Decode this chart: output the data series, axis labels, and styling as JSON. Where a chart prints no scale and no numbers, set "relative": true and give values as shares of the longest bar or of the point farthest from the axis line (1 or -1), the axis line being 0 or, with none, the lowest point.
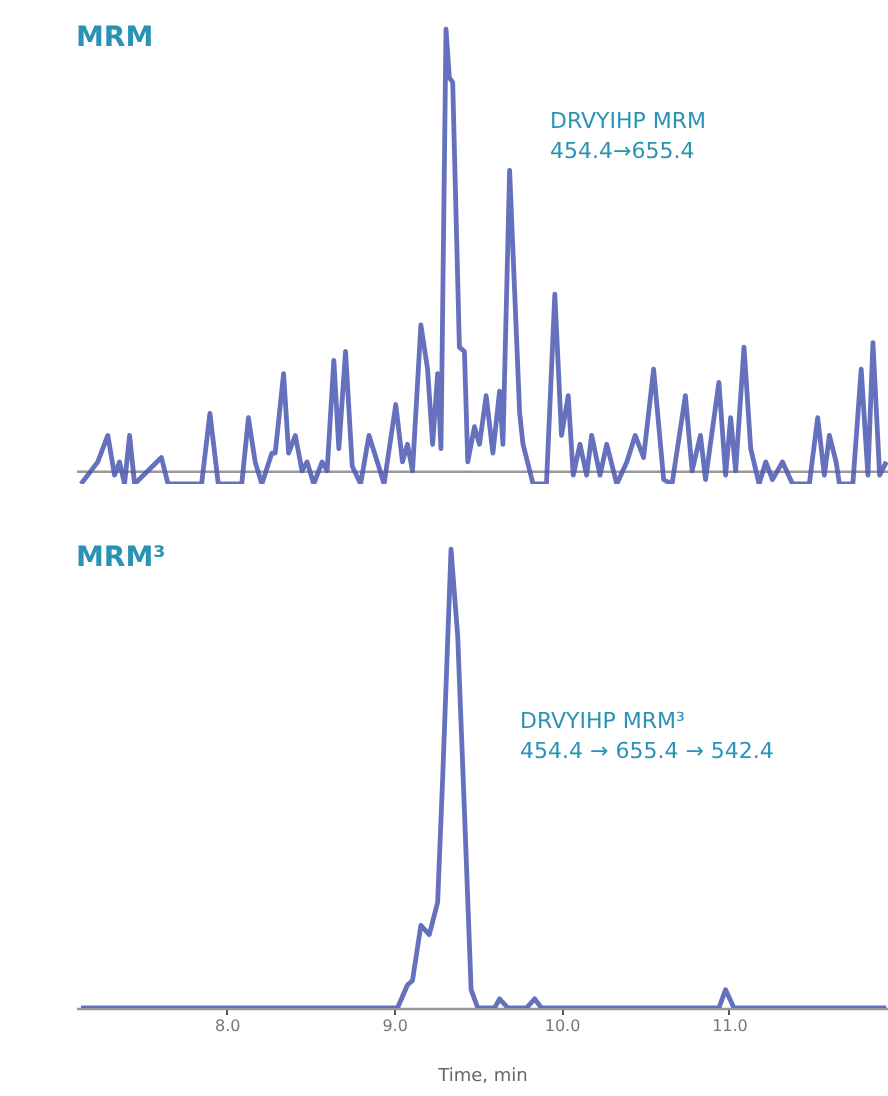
{
  "chart_data": [
    {
      "type": "line",
      "title": "MRM",
      "relative": true,
      "annotations": [
        "DRVYIHP MRM",
        "454.4→655.4"
      ],
      "xlim": [
        7.1,
        11.95
      ],
      "tick_labels": false,
      "grid": false,
      "line_style": "solid",
      "marker": "none",
      "x": [
        7.13,
        7.23,
        7.29,
        7.33,
        7.36,
        7.39,
        7.42,
        7.45,
        7.61,
        7.65,
        7.85,
        7.9,
        7.95,
        8.09,
        8.13,
        8.17,
        8.21,
        8.27,
        8.29,
        8.34,
        8.37,
        8.41,
        8.45,
        8.48,
        8.52,
        8.57,
        8.6,
        8.64,
        8.67,
        8.71,
        8.75,
        8.8,
        8.85,
        8.9,
        8.94,
        9.01,
        9.05,
        9.08,
        9.11,
        9.16,
        9.2,
        9.23,
        9.26,
        9.28,
        9.31,
        9.33,
        9.35,
        9.39,
        9.42,
        9.44,
        9.48,
        9.51,
        9.55,
        9.59,
        9.63,
        9.65,
        9.69,
        9.75,
        9.77,
        9.83,
        9.91,
        9.96,
        10.0,
        10.04,
        10.07,
        10.11,
        10.15,
        10.18,
        10.23,
        10.27,
        10.33,
        10.39,
        10.44,
        10.49,
        10.55,
        10.61,
        10.66,
        10.74,
        10.78,
        10.83,
        10.86,
        10.94,
        10.98,
        11.01,
        11.04,
        11.09,
        11.13,
        11.18,
        11.22,
        11.26,
        11.32,
        11.38,
        11.48,
        11.53,
        11.57,
        11.6,
        11.64,
        11.66,
        11.74,
        11.79,
        11.83,
        11.86,
        11.9,
        11.94
      ],
      "series": [
        {
          "color": "#4a58b0",
          "values": [
            -0.03,
            0.02,
            0.08,
            -0.01,
            0.02,
            -0.03,
            0.08,
            -0.03,
            0.03,
            -0.03,
            -0.03,
            0.13,
            -0.03,
            -0.03,
            0.12,
            0.02,
            -0.03,
            0.04,
            0.04,
            0.22,
            0.04,
            0.08,
            0,
            0.02,
            -0.03,
            0.02,
            0,
            0.25,
            0.05,
            0.27,
            0.01,
            -0.03,
            0.08,
            0.02,
            -0.03,
            0.15,
            0.02,
            0.06,
            0,
            0.33,
            0.23,
            0.06,
            0.22,
            0.05,
            1.0,
            0.89,
            0.88,
            0.28,
            0.27,
            0.02,
            0.1,
            0.06,
            0.17,
            0.04,
            0.18,
            0.06,
            0.68,
            0.13,
            0.06,
            -0.03,
            -0.03,
            0.4,
            0.08,
            0.17,
            -0.01,
            0.06,
            -0.01,
            0.08,
            -0.01,
            0.06,
            -0.03,
            0.02,
            0.08,
            0.03,
            0.23,
            -0.02,
            -0.03,
            0.17,
            0,
            0.08,
            -0.02,
            0.2,
            -0.01,
            0.12,
            0,
            0.28,
            0.05,
            -0.03,
            0.02,
            -0.02,
            0.02,
            -0.03,
            -0.03,
            0.12,
            -0.01,
            0.08,
            0.02,
            -0.03,
            -0.03,
            0.23,
            -0.01,
            0.29,
            -0.01,
            0.02
          ]
        }
      ]
    },
    {
      "type": "line",
      "title": "MRM³",
      "relative": true,
      "xlabel": "Time, min",
      "annotations": [
        "DRVYIHP MRM³",
        "454.4 → 655.4 → 542.4"
      ],
      "xlim": [
        7.1,
        11.95
      ],
      "xticks": [
        {
          "value": 8,
          "label": "8.0"
        },
        {
          "value": 9,
          "label": "9.0"
        },
        {
          "value": 10,
          "label": "10.0"
        },
        {
          "value": 11,
          "label": "11.0"
        }
      ],
      "tick_labels": "x",
      "grid": false,
      "line_style": "solid",
      "marker": "none",
      "x": [
        7.13,
        9.02,
        9.08,
        9.11,
        9.16,
        9.21,
        9.26,
        9.29,
        9.34,
        9.38,
        9.42,
        9.46,
        9.5,
        9.6,
        9.63,
        9.68,
        9.79,
        9.84,
        9.88,
        10.94,
        10.98,
        11.03,
        11.94
      ],
      "series": [
        {
          "color": "#4a58b0",
          "values": [
            0,
            0,
            0.05,
            0.06,
            0.18,
            0.16,
            0.23,
            0.5,
            1.0,
            0.81,
            0.43,
            0.04,
            0,
            0,
            0.02,
            0,
            0,
            0.02,
            0,
            0,
            0.04,
            0,
            0
          ]
        }
      ]
    }
  ]
}
